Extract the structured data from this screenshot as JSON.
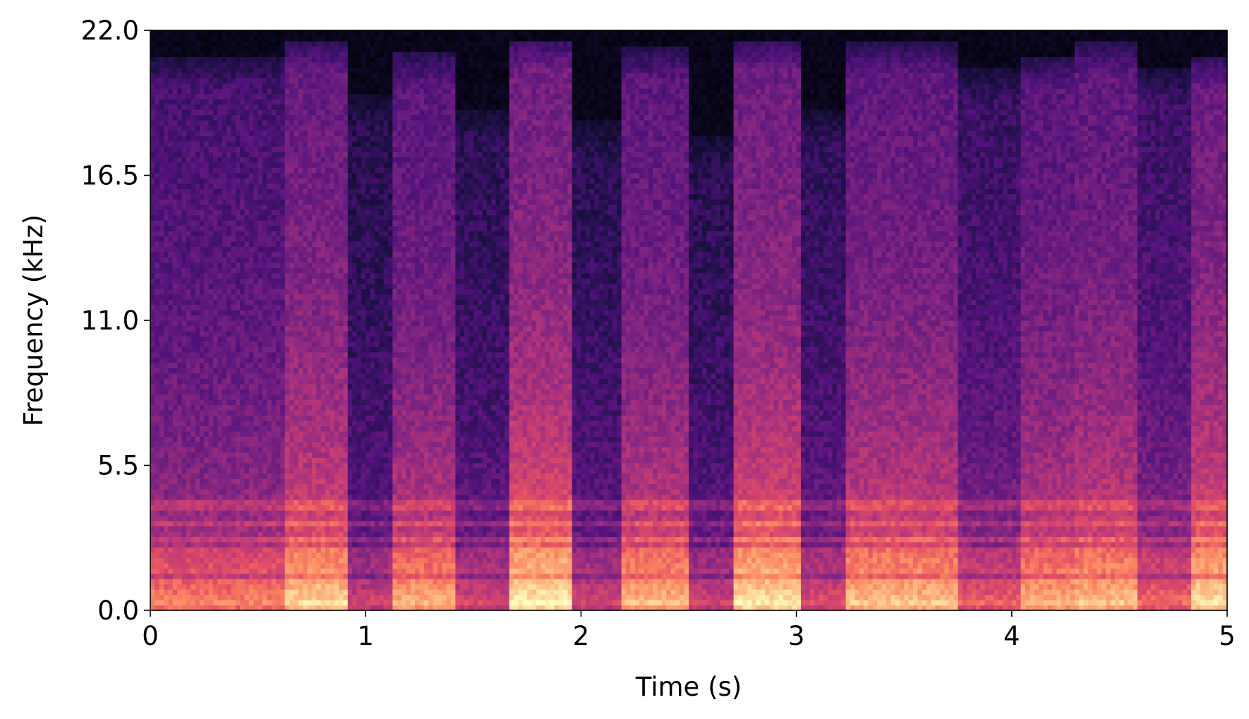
{
  "chart_data": {
    "type": "heatmap",
    "subtype": "spectrogram",
    "title": "",
    "xlabel": "Time (s)",
    "ylabel": "Frequency (kHz)",
    "xlim": [
      0,
      5
    ],
    "ylim": [
      0,
      22.0
    ],
    "x_ticks": [
      0,
      1,
      2,
      3,
      4,
      5
    ],
    "x_tick_labels": [
      "0",
      "1",
      "2",
      "3",
      "4",
      "5"
    ],
    "y_ticks": [
      0.0,
      5.5,
      11.0,
      16.5,
      22.0
    ],
    "y_tick_labels": [
      "0.0",
      "5.5",
      "11.0",
      "16.5",
      "22.0"
    ],
    "colormap": "magma",
    "grid": false,
    "legend": "none",
    "time_segments": [
      {
        "start": 0.0,
        "end": 0.62,
        "energy": 0.52,
        "cutoff_khz": 21.0
      },
      {
        "start": 0.62,
        "end": 0.92,
        "energy": 0.7,
        "cutoff_khz": 21.6
      },
      {
        "start": 0.92,
        "end": 1.13,
        "energy": 0.34,
        "cutoff_khz": 19.5
      },
      {
        "start": 1.13,
        "end": 1.42,
        "energy": 0.62,
        "cutoff_khz": 21.2
      },
      {
        "start": 1.42,
        "end": 1.67,
        "energy": 0.36,
        "cutoff_khz": 19.0
      },
      {
        "start": 1.67,
        "end": 1.96,
        "energy": 0.76,
        "cutoff_khz": 21.7
      },
      {
        "start": 1.96,
        "end": 2.18,
        "energy": 0.35,
        "cutoff_khz": 18.5
      },
      {
        "start": 2.18,
        "end": 2.5,
        "energy": 0.64,
        "cutoff_khz": 21.3
      },
      {
        "start": 2.5,
        "end": 2.71,
        "energy": 0.34,
        "cutoff_khz": 18.0
      },
      {
        "start": 2.71,
        "end": 3.02,
        "energy": 0.74,
        "cutoff_khz": 21.6
      },
      {
        "start": 3.02,
        "end": 3.23,
        "energy": 0.38,
        "cutoff_khz": 19.0
      },
      {
        "start": 3.23,
        "end": 3.76,
        "energy": 0.66,
        "cutoff_khz": 21.5
      },
      {
        "start": 3.76,
        "end": 4.04,
        "energy": 0.44,
        "cutoff_khz": 20.5
      },
      {
        "start": 4.04,
        "end": 4.3,
        "energy": 0.62,
        "cutoff_khz": 21.0
      },
      {
        "start": 4.3,
        "end": 4.58,
        "energy": 0.66,
        "cutoff_khz": 21.5
      },
      {
        "start": 4.58,
        "end": 4.83,
        "energy": 0.46,
        "cutoff_khz": 20.5
      },
      {
        "start": 4.83,
        "end": 5.0,
        "energy": 0.72,
        "cutoff_khz": 21.0
      }
    ]
  }
}
